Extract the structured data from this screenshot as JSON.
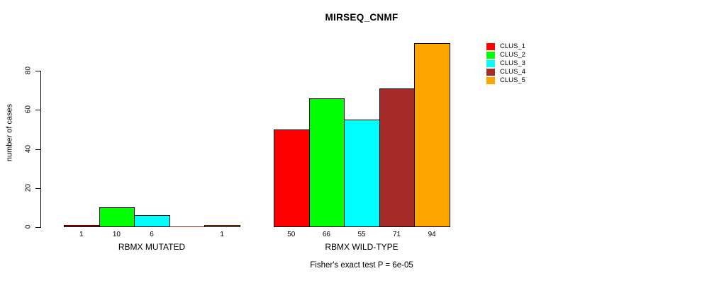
{
  "chart_data": {
    "type": "bar",
    "title": "MIRSEQ_CNMF",
    "ylabel": "number of cases",
    "xlabel": "",
    "ylim": [
      0,
      94
    ],
    "yticks": [
      0,
      20,
      40,
      60,
      80
    ],
    "grid": false,
    "legend_position": "right",
    "legend": [
      {
        "label": "CLUS_1",
        "color": "#FF0000"
      },
      {
        "label": "CLUS_2",
        "color": "#00FF00"
      },
      {
        "label": "CLUS_3",
        "color": "#00FFFF"
      },
      {
        "label": "CLUS_4",
        "color": "#A52A2A"
      },
      {
        "label": "CLUS_5",
        "color": "#FFA500"
      }
    ],
    "series_names": [
      "CLUS_1",
      "CLUS_2",
      "CLUS_3",
      "CLUS_4",
      "CLUS_5"
    ],
    "groups": [
      {
        "label": "RBMX MUTATED",
        "values": [
          1,
          10,
          6,
          0,
          1
        ],
        "value_labels": [
          "1",
          "10",
          "6",
          "",
          "1"
        ]
      },
      {
        "label": "RBMX WILD-TYPE",
        "values": [
          50,
          66,
          55,
          71,
          94
        ],
        "value_labels": [
          "50",
          "66",
          "55",
          "71",
          "94"
        ]
      }
    ],
    "annotation": "Fisher's exact test P = 6e-05"
  }
}
